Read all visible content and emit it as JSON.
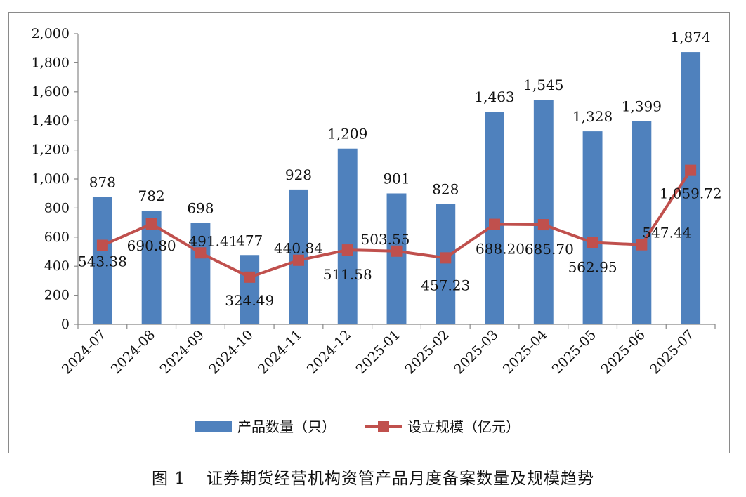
{
  "chart_data": {
    "type": "bar",
    "categories": [
      "2024-07",
      "2024-08",
      "2024-09",
      "2024-10",
      "2024-11",
      "2024-12",
      "2025-01",
      "2025-02",
      "2025-03",
      "2025-04",
      "2025-05",
      "2025-06",
      "2025-07"
    ],
    "series": [
      {
        "name": "产品数量（只）",
        "type": "bar",
        "values": [
          878,
          782,
          698,
          477,
          928,
          1209,
          901,
          828,
          1463,
          1545,
          1328,
          1399,
          1874
        ],
        "labels": [
          "878",
          "782",
          "698",
          "477",
          "928",
          "1,209",
          "901",
          "828",
          "1,463",
          "1,545",
          "1,328",
          "1,399",
          "1,874"
        ],
        "color": "#4f81bd"
      },
      {
        "name": "设立规模（亿元）",
        "type": "line",
        "values": [
          543.38,
          690.8,
          491.41,
          324.49,
          440.84,
          511.58,
          503.55,
          457.23,
          688.2,
          685.7,
          562.95,
          547.44,
          1059.72
        ],
        "labels": [
          "543.38",
          "690.80",
          "491.41",
          "324.49",
          "440.84",
          "511.58",
          "503.55",
          "457.23",
          "688.20",
          "685.70",
          "562.95",
          "547.44",
          "1,059.72"
        ],
        "color": "#c0504d"
      }
    ],
    "ylim": [
      0,
      2000
    ],
    "yticks": [
      0,
      200,
      400,
      600,
      800,
      1000,
      1200,
      1400,
      1600,
      1800,
      2000
    ],
    "ytick_labels": [
      "0",
      "200",
      "400",
      "600",
      "800",
      "1,000",
      "1,200",
      "1,400",
      "1,600",
      "1,800",
      "2,000"
    ],
    "legend_position": "bottom",
    "grid": false
  },
  "caption": {
    "figure_number": "图 1",
    "text": "证券期货经营机构资管产品月度备案数量及规模趋势"
  }
}
